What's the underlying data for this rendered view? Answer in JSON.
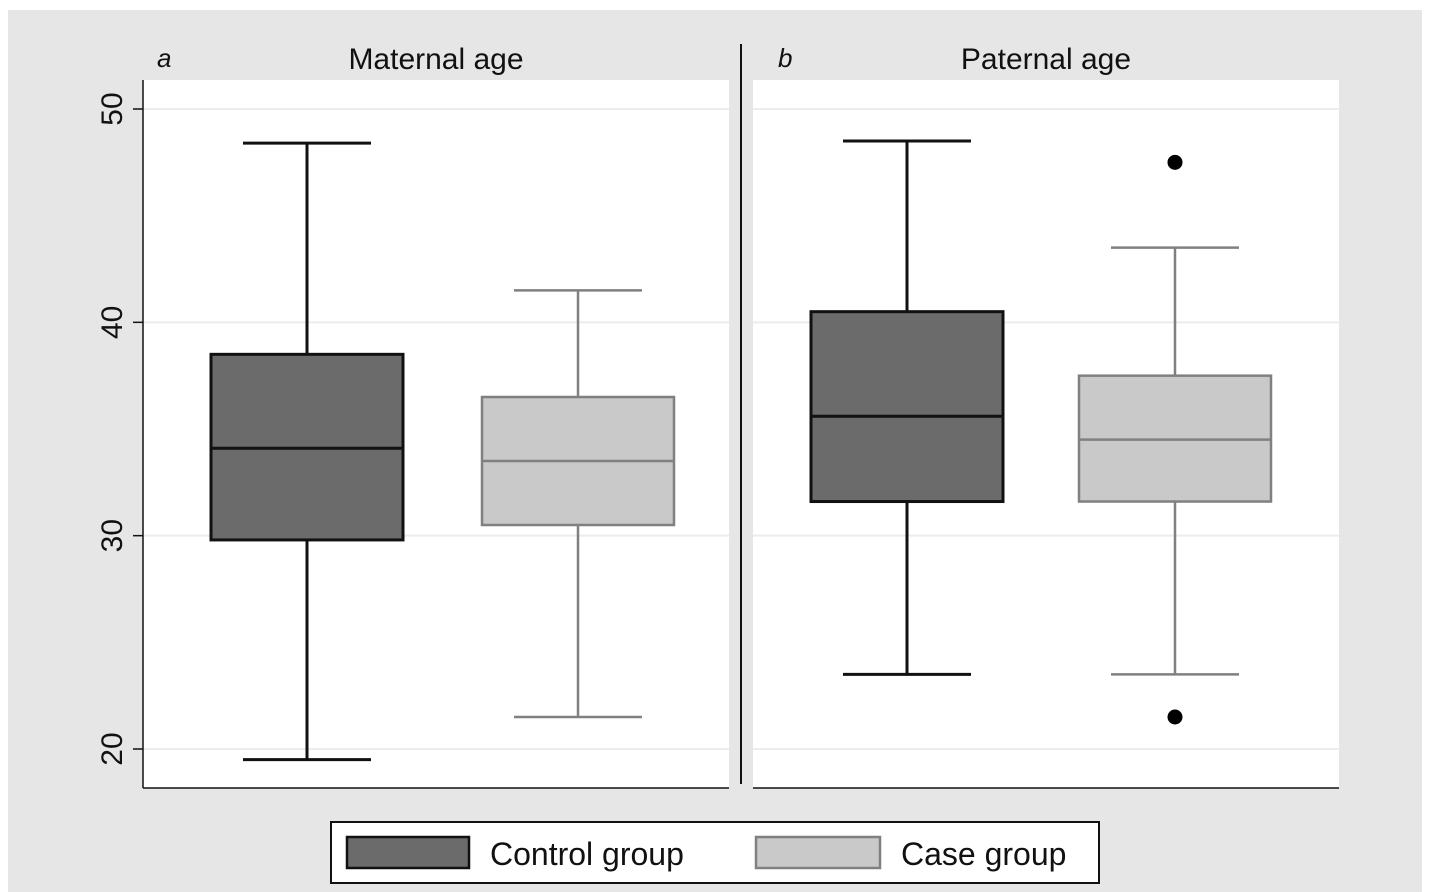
{
  "chart_data": [
    {
      "type": "box",
      "panel_label": "a",
      "title": "Maternal age",
      "ylim": [
        20,
        50
      ],
      "yticks": [
        "20",
        "30",
        "40",
        "50"
      ],
      "grid": true,
      "groups": [
        {
          "name": "Control group",
          "whisker_low": 19.5,
          "q1": 29.8,
          "median": 34.1,
          "q3": 38.5,
          "whisker_high": 48.4,
          "outliers": []
        },
        {
          "name": "Case group",
          "whisker_low": 21.5,
          "q1": 30.5,
          "median": 33.5,
          "q3": 36.5,
          "whisker_high": 41.5,
          "outliers": []
        }
      ]
    },
    {
      "type": "box",
      "panel_label": "b",
      "title": "Paternal age",
      "ylim": [
        20,
        50
      ],
      "yticks": [
        "20",
        "30",
        "40",
        "50"
      ],
      "grid": true,
      "groups": [
        {
          "name": "Control group",
          "whisker_low": 23.5,
          "q1": 31.6,
          "median": 35.6,
          "q3": 40.5,
          "whisker_high": 48.5,
          "outliers": []
        },
        {
          "name": "Case group",
          "whisker_low": 23.5,
          "q1": 31.6,
          "median": 34.5,
          "q3": 37.5,
          "whisker_high": 43.5,
          "outliers": [
            47.5,
            21.5
          ]
        }
      ]
    }
  ],
  "legend": {
    "position": "bottom-center",
    "items": [
      {
        "label": "Control group",
        "fill": "#6b6b6b",
        "stroke": "#111111"
      },
      {
        "label": "Case group",
        "fill": "#c9c9c9",
        "stroke": "#808080"
      }
    ]
  },
  "colors": {
    "outer_background": "#e6e6e6",
    "plot_background": "#ffffff",
    "grid": "#ececec",
    "control_fill": "#6b6b6b",
    "control_stroke": "#111111",
    "case_fill": "#c9c9c9",
    "case_stroke": "#808080",
    "outlier": "#000000"
  }
}
